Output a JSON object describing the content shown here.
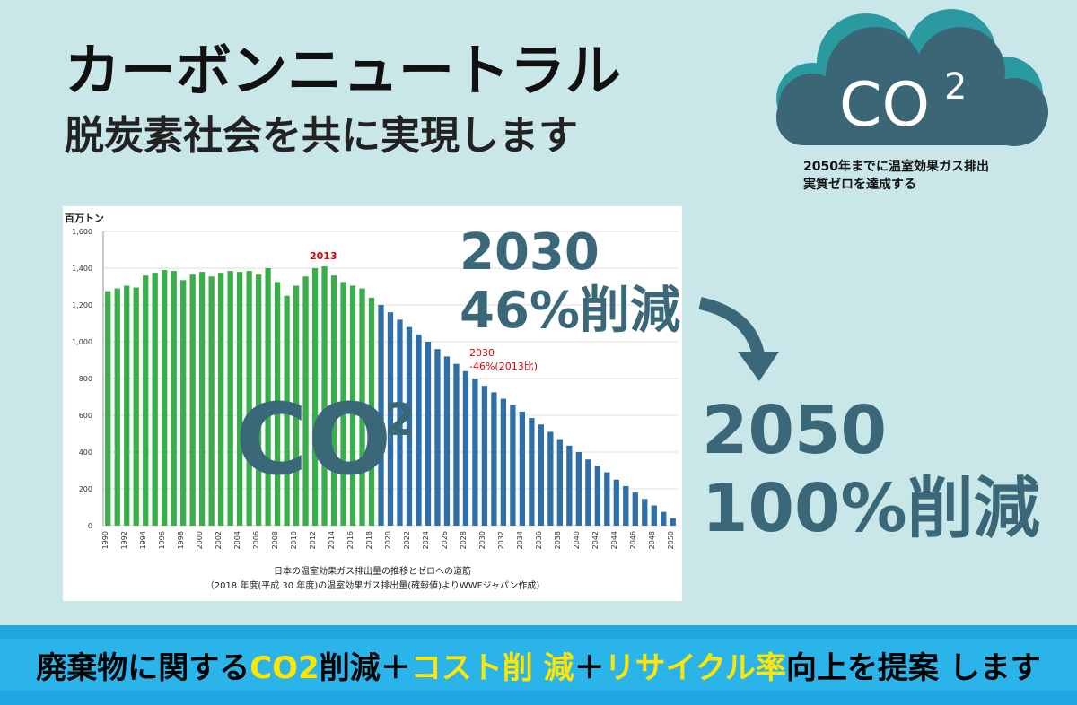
{
  "header": {
    "title": "カーボンニュートラル",
    "subtitle": "脱炭素社会を共に実現します"
  },
  "cloud": {
    "label": "CO",
    "sup": "2",
    "caption": [
      "2050年までに温室効果ガス排出",
      "実質ゼロを達成する"
    ]
  },
  "targets": [
    {
      "year": "2030",
      "text": "46%削減"
    },
    {
      "year": "2050",
      "text": "100%削減"
    }
  ],
  "chart_data": {
    "type": "bar",
    "y_label": "百万トン",
    "overlay": {
      "label": "CO",
      "sup": "2"
    },
    "annotations": [
      "2013",
      "2030",
      "-46%(2013比)"
    ],
    "caption": [
      "日本の温室効果ガス排出量の推移とゼロへの道筋",
      "（2018 年度(平成 30 年度)の温室効果ガス排出量(確報値)よりWWFジャパン作成)"
    ],
    "categories": [
      "1990",
      null,
      "1992",
      null,
      "1994",
      null,
      "1996",
      null,
      "1998",
      null,
      "2000",
      null,
      "2002",
      null,
      "2004",
      null,
      "2006",
      null,
      "2008",
      null,
      "2010",
      null,
      "2012",
      null,
      "2014",
      null,
      "2016",
      null,
      "2018",
      null,
      "2020",
      null,
      "2022",
      null,
      "2024",
      null,
      "2026",
      null,
      "2028",
      null,
      "2030",
      null,
      "2032",
      null,
      "2034",
      null,
      "2036",
      null,
      "2038",
      null,
      "2040",
      null,
      "2042",
      null,
      "2044",
      null,
      "2046",
      null,
      "2048",
      null,
      "2050"
    ],
    "series": [
      {
        "color": "#3aae4a",
        "values": [
          1275,
          1290,
          1305,
          1295,
          1360,
          1375,
          1390,
          1385,
          1335,
          1365,
          1380,
          1355,
          1375,
          1385,
          1380,
          1385,
          1365,
          1400,
          1325,
          1250,
          1305,
          1355,
          1400,
          1410,
          1360,
          1325,
          1305,
          1290,
          1240,
          null,
          null,
          null,
          null,
          null,
          null,
          null,
          null,
          null,
          null,
          null,
          null,
          null,
          null,
          null,
          null,
          null,
          null,
          null,
          null,
          null,
          null,
          null,
          null,
          null,
          null,
          null,
          null,
          null,
          null,
          null,
          null
        ]
      },
      {
        "color": "#2f6fa8",
        "values": [
          null,
          null,
          null,
          null,
          null,
          null,
          null,
          null,
          null,
          null,
          null,
          null,
          null,
          null,
          null,
          null,
          null,
          null,
          null,
          null,
          null,
          null,
          null,
          null,
          null,
          null,
          null,
          null,
          null,
          1200,
          1160,
          1120,
          1080,
          1040,
          1000,
          960,
          920,
          880,
          840,
          800,
          760,
          725,
          690,
          655,
          620,
          585,
          550,
          510,
          470,
          435,
          400,
          360,
          325,
          290,
          250,
          215,
          180,
          145,
          110,
          75,
          40
        ]
      }
    ],
    "ylim": [
      0,
      1600
    ],
    "yticks": [
      0,
      200,
      400,
      600,
      800,
      {
        "value": 1000,
        "label": "1,000"
      },
      {
        "value": 1200,
        "label": "1,200"
      },
      {
        "value": 1400,
        "label": "1,400"
      },
      {
        "value": 1600,
        "label": "1,600"
      }
    ],
    "grid": true
  },
  "banner": {
    "segments": [
      {
        "text": "廃棄物に関する",
        "color": "#000000"
      },
      {
        "text": "CO2",
        "color": "#ffe600"
      },
      {
        "text": "削減＋",
        "color": "#000000"
      },
      {
        "text": "コスト削 減",
        "color": "#ffe600"
      },
      {
        "text": "＋",
        "color": "#000000"
      },
      {
        "text": "リサイクル率",
        "color": "#ffe600"
      },
      {
        "text": "向上を提案 します",
        "color": "#000000"
      }
    ]
  }
}
